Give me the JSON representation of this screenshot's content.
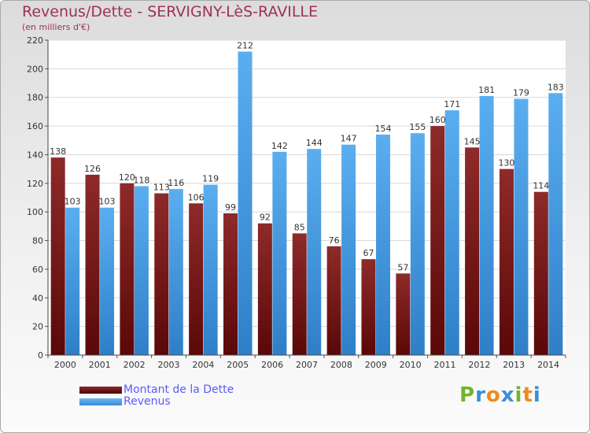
{
  "title": "Revenus/Dette - SERVIGNY-LèS-RAVILLE",
  "subtitle": "(en milliers d'€)",
  "logo": "Proxiti",
  "colors": {
    "dette": "#8b1e1e",
    "revenus": "#4ea3e6",
    "title": "#a0305a",
    "legend_text": "#5a5aff"
  },
  "chart_data": {
    "type": "bar",
    "categories": [
      "2000",
      "2001",
      "2002",
      "2003",
      "2004",
      "2005",
      "2006",
      "2007",
      "2008",
      "2009",
      "2010",
      "2011",
      "2012",
      "2013",
      "2014"
    ],
    "series": [
      {
        "name": "Montant de la Dette",
        "values": [
          138,
          126,
          120,
          113,
          106,
          99,
          92,
          85,
          76,
          67,
          57,
          160,
          145,
          130,
          114
        ]
      },
      {
        "name": "Revenus",
        "values": [
          103,
          103,
          118,
          116,
          119,
          212,
          142,
          144,
          147,
          154,
          155,
          171,
          181,
          179,
          183
        ]
      }
    ],
    "ylim": [
      0,
      220
    ],
    "yticks": [
      0,
      20,
      40,
      60,
      80,
      100,
      120,
      140,
      160,
      180,
      200,
      220
    ],
    "grid": true,
    "legend": "bottom-left"
  }
}
